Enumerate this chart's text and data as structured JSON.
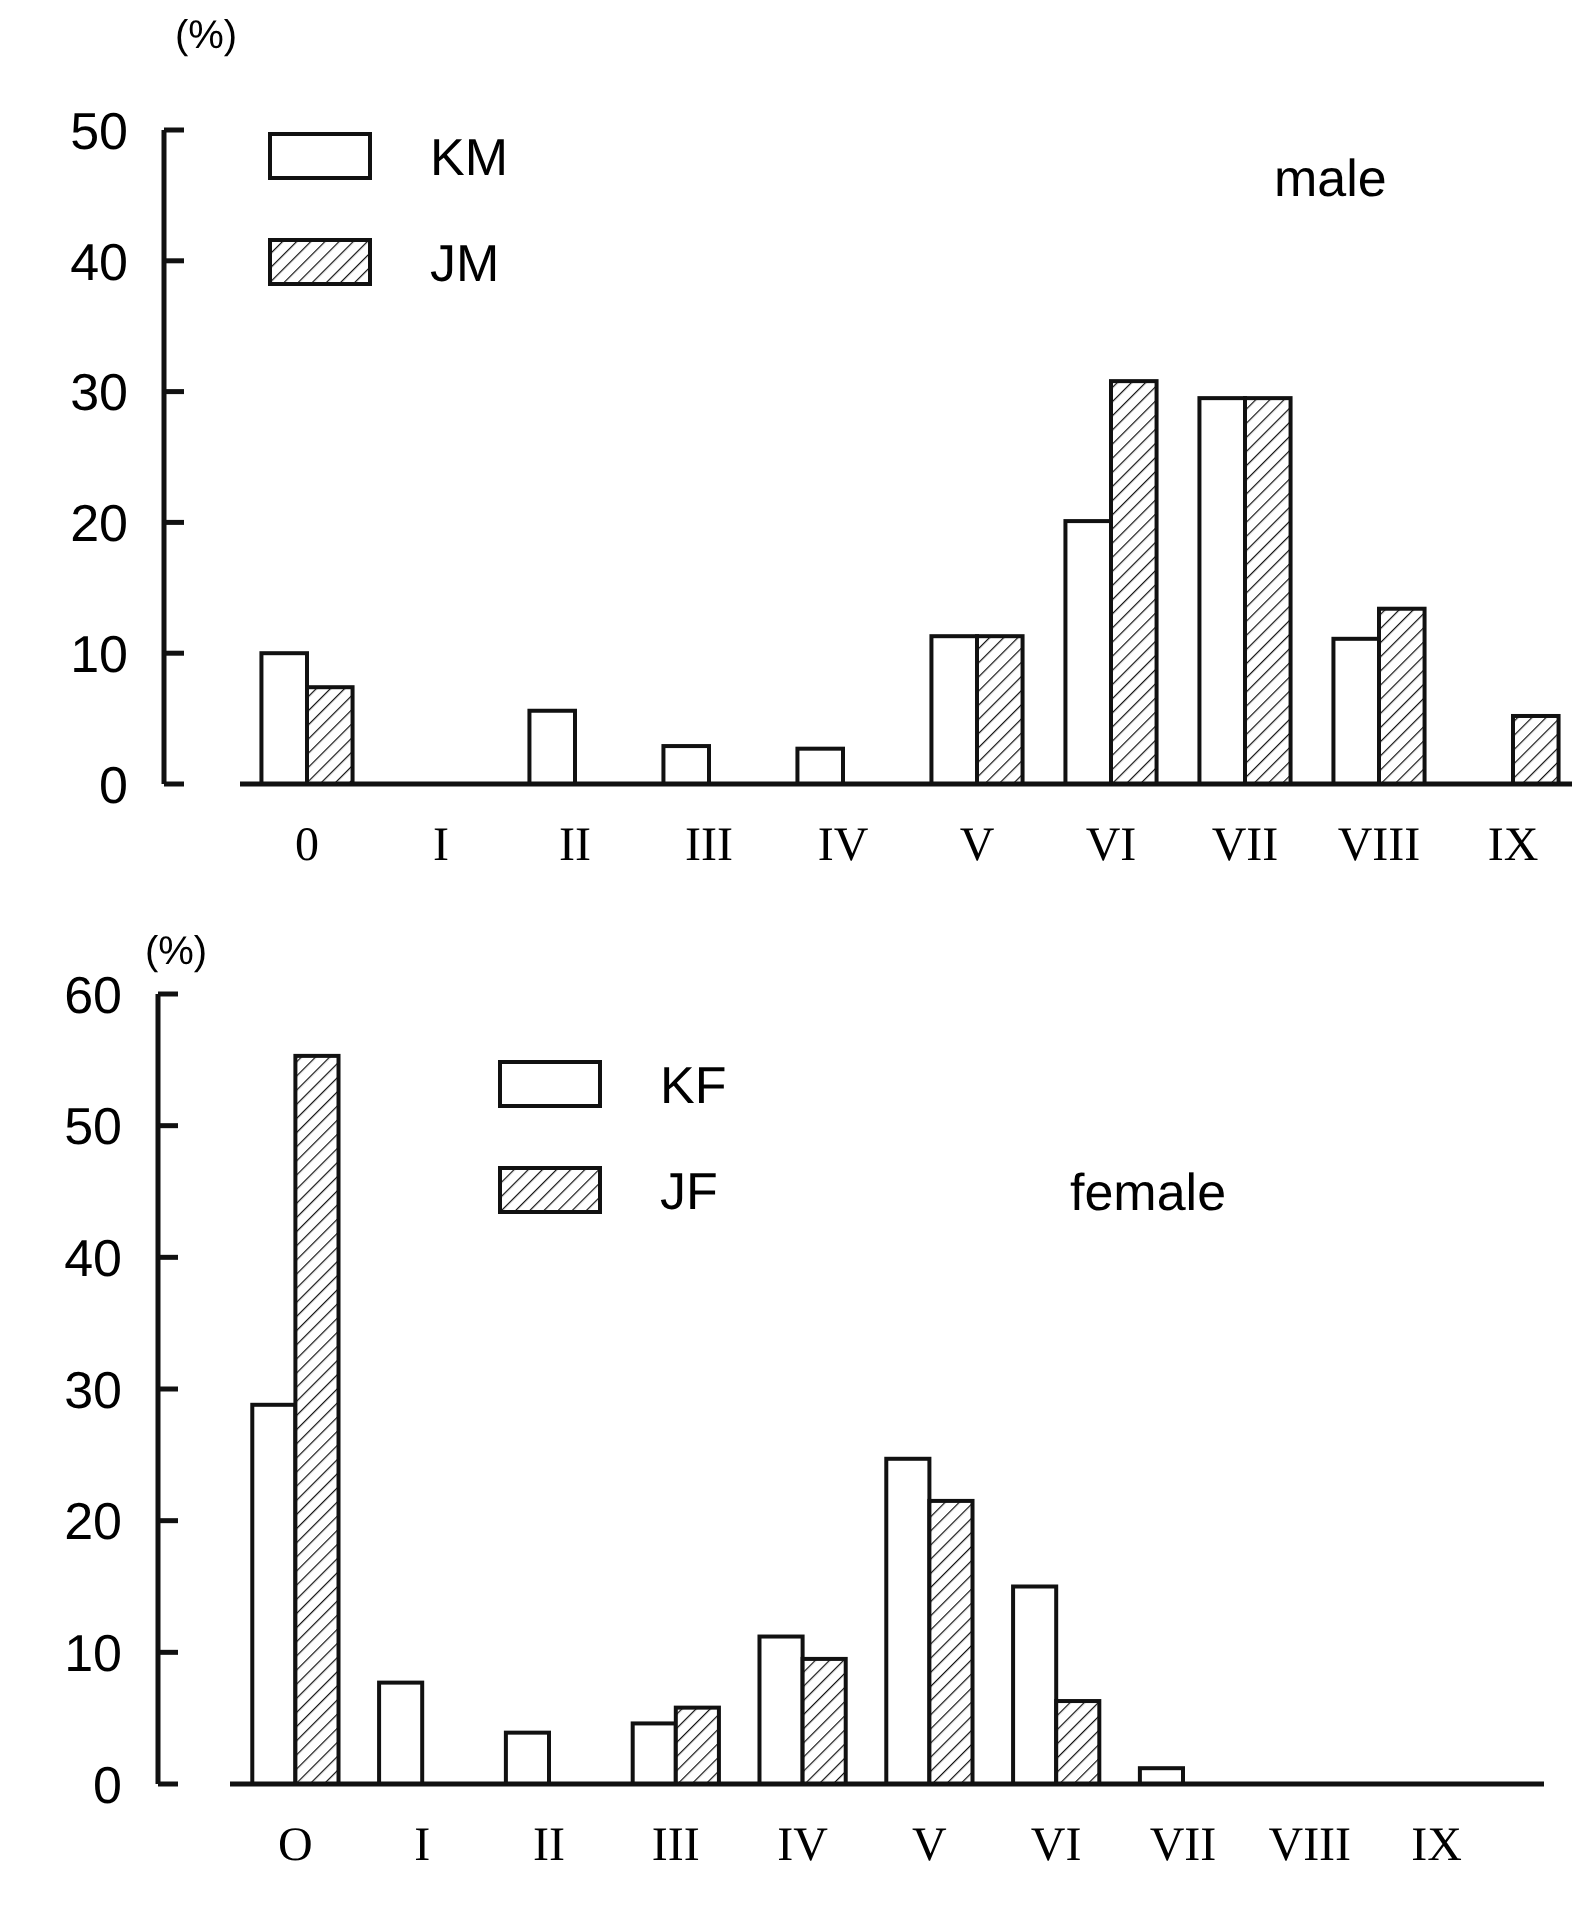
{
  "chart_data": [
    {
      "type": "bar",
      "ylabel": "(%)",
      "categories": [
        "0",
        "I",
        "II",
        "III",
        "IV",
        "V",
        "VI",
        "VII",
        "VIII",
        "IX"
      ],
      "series": [
        {
          "name": "KM",
          "color": "#ffffff",
          "values": [
            10,
            0,
            5.6,
            2.9,
            2.7,
            11.3,
            20.1,
            29.5,
            11.1,
            0
          ]
        },
        {
          "name": "JM",
          "color": "#111111",
          "values": [
            7.4,
            0,
            0,
            0,
            0,
            11.3,
            30.8,
            29.5,
            13.4,
            5.2
          ]
        }
      ],
      "ylim": [
        0,
        50
      ],
      "yticks": [
        0,
        10,
        20,
        30,
        40,
        50
      ],
      "legend": "top left",
      "annotations": [
        "male"
      ]
    },
    {
      "type": "bar",
      "ylabel": "(%)",
      "categories": [
        "O",
        "I",
        "II",
        "III",
        "IV",
        "V",
        "VI",
        "VII",
        "VIII",
        "IX"
      ],
      "series": [
        {
          "name": "KF",
          "color": "#ffffff",
          "values": [
            28.8,
            7.7,
            3.9,
            4.6,
            11.2,
            24.7,
            15.0,
            1.2,
            0,
            0
          ]
        },
        {
          "name": "JF",
          "color": "#111111",
          "values": [
            55.3,
            0,
            0,
            5.8,
            9.5,
            21.5,
            6.3,
            0,
            0,
            0
          ]
        }
      ],
      "ylim": [
        0,
        60
      ],
      "yticks": [
        0,
        10,
        20,
        30,
        40,
        50,
        60
      ],
      "legend": "top",
      "annotations": [
        "female"
      ]
    }
  ]
}
